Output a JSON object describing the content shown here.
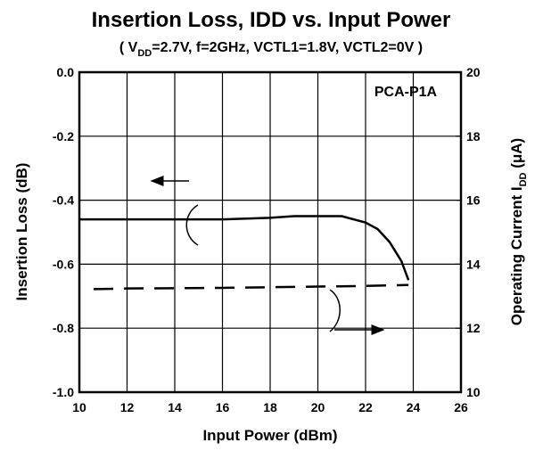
{
  "chart_data": {
    "type": "line",
    "title": "Insertion Loss, IDD vs. Input Power",
    "subtitle": {
      "parts": [
        "( V",
        "DD",
        "=2.7V, f=2GHz, VCTL1=1.8V, VCTL2=0V )"
      ]
    },
    "annotation": "PCA-P1A",
    "x_label": "Input Power (dBm)",
    "y_label": "Insertion Loss (dB)",
    "y2_label": {
      "parts": [
        "Operating Current I",
        "DD",
        " (μA)"
      ]
    },
    "xlim": [
      10,
      26
    ],
    "xticks": [
      10,
      12,
      14,
      16,
      18,
      20,
      22,
      24,
      26
    ],
    "ylim": [
      -1,
      0
    ],
    "yticks": [
      {
        "value": -1,
        "label": "-1.0"
      },
      -0.8,
      -0.6,
      -0.4,
      -0.2,
      {
        "value": 0,
        "label": "0.0"
      }
    ],
    "y2lim": [
      10,
      20
    ],
    "y2ticks": [
      10,
      12,
      14,
      16,
      18,
      20
    ],
    "grid": true,
    "series": [
      {
        "color": "#000000",
        "dash": false,
        "x": [
          10,
          12,
          14,
          16,
          18,
          19,
          20,
          21,
          22,
          22.5,
          23,
          23.5,
          23.8
        ],
        "values": [
          -0.46,
          -0.46,
          -0.46,
          -0.46,
          -0.455,
          -0.45,
          -0.45,
          -0.45,
          -0.47,
          -0.49,
          -0.53,
          -0.59,
          -0.65
        ]
      },
      {
        "color": "#000000",
        "dash": true,
        "axis": "y2",
        "x": [
          10.6,
          12,
          14,
          16,
          18,
          20,
          22,
          23.8
        ],
        "values": [
          13.22,
          13.24,
          13.25,
          13.26,
          13.28,
          13.3,
          13.32,
          13.35
        ]
      }
    ]
  }
}
